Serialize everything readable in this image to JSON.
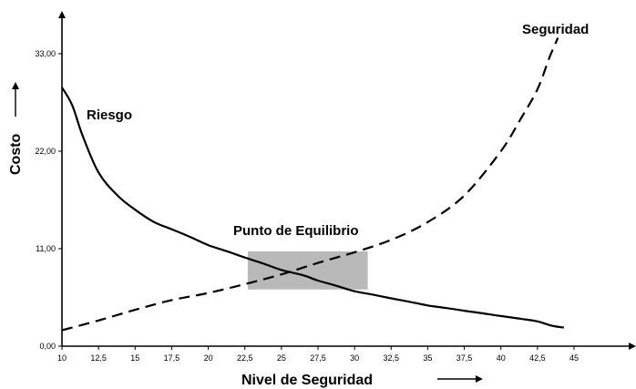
{
  "chart_data": {
    "type": "line",
    "xlabel": "Nivel de Seguridad",
    "ylabel": "Costo",
    "x_ticks": [
      "10",
      "12,5",
      "15",
      "17,5",
      "20",
      "22,5",
      "25",
      "27,5",
      "30",
      "32,5",
      "35",
      "37,5",
      "40",
      "42,5",
      "45"
    ],
    "y_ticks": [
      "0,00",
      "11,00",
      "22,00",
      "33,00"
    ],
    "xlim": [
      10,
      45
    ],
    "ylim": [
      0,
      36
    ],
    "grid": false,
    "series": [
      {
        "name": "Riesgo",
        "style": "solid",
        "x": [
          10,
          10.7,
          11.4,
          12.5,
          13.8,
          15,
          16.3,
          17.5,
          18.8,
          20,
          21.3,
          22.5,
          23.8,
          25,
          26.5,
          27.5,
          28.8,
          30,
          31.3,
          32.5,
          33.8,
          35,
          36.3,
          37.5,
          38.8,
          40,
          41.3,
          42.5,
          43.5,
          44.3
        ],
        "y": [
          29.2,
          27.2,
          23.8,
          19.6,
          17.0,
          15.4,
          14.0,
          13.2,
          12.3,
          11.4,
          10.7,
          10.0,
          9.3,
          8.6,
          8.0,
          7.4,
          6.8,
          6.2,
          5.8,
          5.4,
          5.0,
          4.6,
          4.3,
          4.0,
          3.7,
          3.4,
          3.1,
          2.8,
          2.3,
          2.1
        ]
      },
      {
        "name": "Seguridad",
        "style": "dashed",
        "x": [
          10,
          12.5,
          15,
          17.5,
          20,
          22.5,
          25,
          27.5,
          30,
          32.5,
          35,
          37.5,
          40,
          41.3,
          42.5,
          43.3,
          43.9
        ],
        "y": [
          1.8,
          2.9,
          4.1,
          5.2,
          6.0,
          7.0,
          8.1,
          9.4,
          10.6,
          12.0,
          14.0,
          17.0,
          22.0,
          25.5,
          29.0,
          32.5,
          34.8
        ]
      }
    ],
    "annotations": [
      {
        "text": "Punto de Equilibrio",
        "region_x": [
          22.7,
          30.9
        ],
        "region_y": [
          6.4,
          10.7
        ]
      }
    ]
  }
}
